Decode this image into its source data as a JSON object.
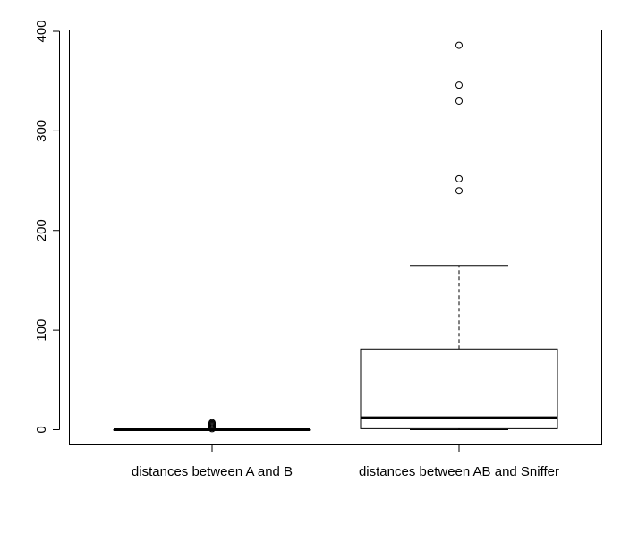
{
  "chart_data": {
    "type": "boxplot",
    "title": "",
    "xlabel": "",
    "ylabel": "",
    "ylim": [
      -15,
      402
    ],
    "yticks": [
      0,
      100,
      200,
      300,
      400
    ],
    "tick_labels": [
      "0",
      "100",
      "200",
      "300",
      "400"
    ],
    "grid": false,
    "legend": "none",
    "colors": {
      "stroke": "#000000",
      "box_fill": "#ffffff",
      "background": "#ffffff"
    },
    "categories": [
      "distances between A and B",
      "distances between AB and Sniffer"
    ],
    "series": [
      {
        "whisker_low": 0,
        "q1": 0,
        "median": 0,
        "q3": 0,
        "whisker_high": 0,
        "outliers": [
          1,
          2,
          3,
          4,
          5,
          6,
          7
        ]
      },
      {
        "whisker_low": 0,
        "q1": 1,
        "median": 12,
        "q3": 81,
        "whisker_high": 165,
        "outliers": [
          240,
          252,
          330,
          346,
          386
        ]
      }
    ]
  }
}
